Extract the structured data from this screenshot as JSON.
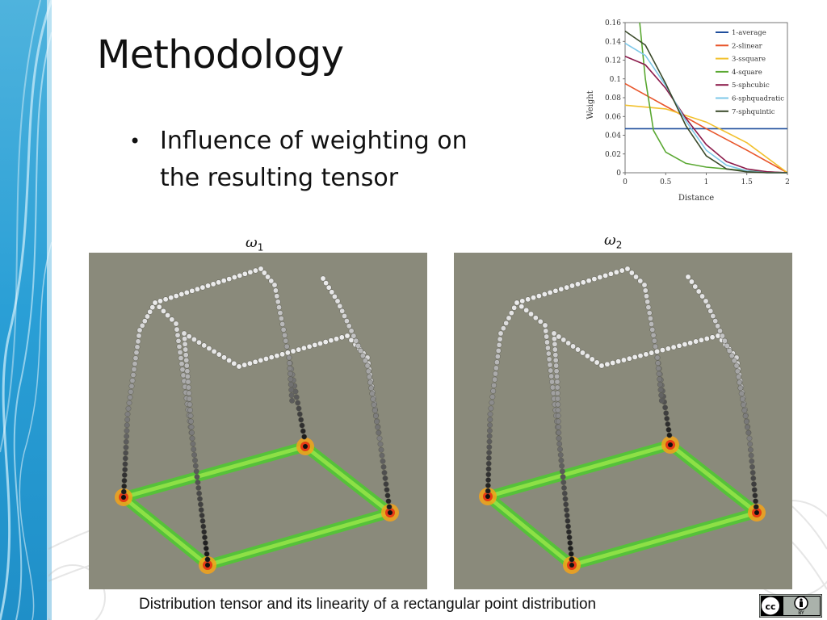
{
  "slide": {
    "title": "Methodology",
    "bullet": "Influence of weighting on the resulting tensor",
    "omega_left": "ω",
    "omega_left_sub": "1",
    "omega_right": "ω",
    "omega_right_sub": "2",
    "caption": "Distribution tensor and its linearity of a rectangular point distribution",
    "license": {
      "icon": "creative-commons-by-icon",
      "text": "BY"
    }
  },
  "chart_data": {
    "type": "line",
    "xlabel": "Distance",
    "ylabel": "Weight",
    "xlim": [
      0,
      2
    ],
    "ylim": [
      0,
      0.16
    ],
    "xticks": [
      "0",
      "0.5",
      "1",
      "1.5",
      "2"
    ],
    "yticks": [
      "0",
      "0.02",
      "0.04",
      "0.06",
      "0.08",
      "0.1",
      "0.12",
      "0.14",
      "0.16"
    ],
    "legend_position": "top-right",
    "series": [
      {
        "name": "1-average",
        "color": "#1f4e9c",
        "x": [
          0,
          0.5,
          1,
          1.5,
          2
        ],
        "y": [
          0.047,
          0.047,
          0.047,
          0.047,
          0.047
        ]
      },
      {
        "name": "2-slinear",
        "color": "#e8552a",
        "x": [
          0,
          0.5,
          1,
          1.5,
          2
        ],
        "y": [
          0.095,
          0.071,
          0.047,
          0.024,
          0.0
        ]
      },
      {
        "name": "3-ssquare",
        "color": "#f2c12e",
        "x": [
          0,
          0.5,
          1,
          1.5,
          2
        ],
        "y": [
          0.072,
          0.068,
          0.054,
          0.032,
          0.0
        ]
      },
      {
        "name": "4-square",
        "color": "#5aa832",
        "x": [
          0.18,
          0.25,
          0.35,
          0.5,
          0.75,
          1,
          1.5,
          2
        ],
        "y": [
          0.16,
          0.1,
          0.045,
          0.022,
          0.01,
          0.006,
          0.002,
          0.0
        ]
      },
      {
        "name": "5-sphcubic",
        "color": "#8b1a4a",
        "x": [
          0,
          0.25,
          0.5,
          0.75,
          1,
          1.25,
          1.5,
          1.75,
          2
        ],
        "y": [
          0.124,
          0.115,
          0.09,
          0.058,
          0.03,
          0.012,
          0.004,
          0.001,
          0.0
        ]
      },
      {
        "name": "6-sphquadratic",
        "color": "#7ec8e8",
        "x": [
          0,
          0.25,
          0.5,
          0.75,
          1,
          1.25,
          1.5,
          1.75,
          2
        ],
        "y": [
          0.138,
          0.125,
          0.093,
          0.055,
          0.024,
          0.008,
          0.002,
          0.0,
          0.0
        ]
      },
      {
        "name": "7-sphquintic",
        "color": "#3a4a2a",
        "x": [
          0,
          0.25,
          0.5,
          0.75,
          1,
          1.25,
          1.5,
          1.75,
          2
        ],
        "y": [
          0.151,
          0.136,
          0.095,
          0.05,
          0.018,
          0.004,
          0.001,
          0.0,
          0.0
        ]
      }
    ]
  }
}
